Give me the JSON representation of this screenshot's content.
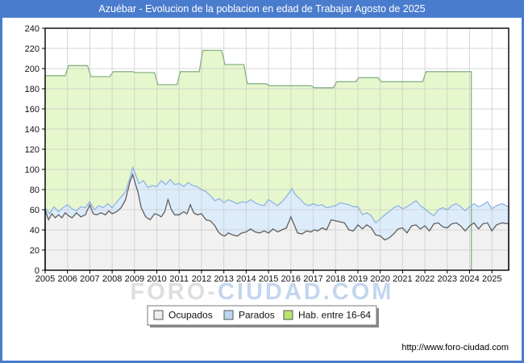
{
  "window": {
    "title": "Azuébar - Evolucion de la poblacion en edad de Trabajar Agosto de 2025"
  },
  "colors": {
    "frame_blue": "#4a7ccd",
    "grid": "#c9c9c9",
    "plot_border": "#000000"
  },
  "watermark": {
    "part1": "FORO-",
    "part2": "CIUDAD.COM"
  },
  "footer": {
    "url": "http://www.foro-ciudad.com"
  },
  "legend": {
    "items": [
      {
        "label": "Ocupados",
        "swatch": "#ededed",
        "border": "#555555"
      },
      {
        "label": "Parados",
        "swatch": "#bdd7f0",
        "border": "#555555"
      },
      {
        "label": "Hab. entre 16-64",
        "swatch": "#b9e56e",
        "border": "#555555"
      }
    ]
  },
  "chart_data": {
    "type": "area",
    "title": "Azuébar - Evolucion de la poblacion en edad de Trabajar Agosto de 2025",
    "xlabel": "",
    "ylabel": "",
    "grid": true,
    "legend_position": "bottom",
    "x_axis": {
      "lim": [
        2005,
        2025.75
      ],
      "ticks": [
        2005,
        2006,
        2007,
        2008,
        2009,
        2010,
        2011,
        2012,
        2013,
        2014,
        2015,
        2016,
        2017,
        2018,
        2019,
        2020,
        2021,
        2022,
        2023,
        2024,
        2025
      ]
    },
    "y_axis": {
      "lim": [
        0,
        240
      ],
      "ticks": [
        0,
        20,
        40,
        60,
        80,
        100,
        120,
        140,
        160,
        180,
        200,
        220,
        240
      ]
    },
    "annual_hab_16_64": {
      "years": [
        2005,
        2006,
        2007,
        2008,
        2009,
        2010,
        2011,
        2012,
        2013,
        2014,
        2015,
        2016,
        2017,
        2018,
        2019,
        2020,
        2021,
        2022,
        2023
      ],
      "values": [
        193,
        203,
        192,
        197,
        196,
        184,
        197,
        218,
        204,
        185,
        183,
        183,
        181,
        187,
        191,
        187,
        187,
        197,
        197
      ]
    },
    "series": [
      {
        "name": "Hab. entre 16-64",
        "fill": "#e6f7cd",
        "line": "#86b386",
        "points": [
          [
            2005,
            193
          ],
          [
            2005.9,
            193
          ],
          [
            2006.05,
            203
          ],
          [
            2006.9,
            203
          ],
          [
            2007.05,
            192
          ],
          [
            2007.9,
            192
          ],
          [
            2008.05,
            197
          ],
          [
            2008.9,
            197
          ],
          [
            2009.05,
            196
          ],
          [
            2009.9,
            196
          ],
          [
            2010.05,
            184
          ],
          [
            2010.9,
            184
          ],
          [
            2011.05,
            197
          ],
          [
            2011.9,
            197
          ],
          [
            2012.05,
            218
          ],
          [
            2012.9,
            218
          ],
          [
            2013.05,
            204
          ],
          [
            2013.9,
            204
          ],
          [
            2014.05,
            185
          ],
          [
            2014.9,
            185
          ],
          [
            2015.05,
            183
          ],
          [
            2015.9,
            183
          ],
          [
            2016.05,
            183
          ],
          [
            2016.9,
            183
          ],
          [
            2017.05,
            181
          ],
          [
            2017.9,
            181
          ],
          [
            2018.05,
            187
          ],
          [
            2018.9,
            187
          ],
          [
            2019.05,
            191
          ],
          [
            2019.9,
            191
          ],
          [
            2020.05,
            187
          ],
          [
            2020.9,
            187
          ],
          [
            2021.05,
            187
          ],
          [
            2021.9,
            187
          ],
          [
            2022.05,
            197
          ],
          [
            2022.9,
            197
          ],
          [
            2023.05,
            197
          ],
          [
            2024.08,
            197
          ]
        ]
      },
      {
        "name": "Parados",
        "fill": "#ddecfa",
        "line": "#8fb4e3",
        "points": [
          [
            2005,
            62
          ],
          [
            2005.2,
            56
          ],
          [
            2005.4,
            63
          ],
          [
            2005.6,
            58
          ],
          [
            2005.8,
            62
          ],
          [
            2006,
            65
          ],
          [
            2006.2,
            61
          ],
          [
            2006.4,
            59
          ],
          [
            2006.6,
            63
          ],
          [
            2006.8,
            62
          ],
          [
            2007,
            68
          ],
          [
            2007.2,
            60
          ],
          [
            2007.4,
            64
          ],
          [
            2007.6,
            62
          ],
          [
            2007.8,
            66
          ],
          [
            2008,
            62
          ],
          [
            2008.3,
            70
          ],
          [
            2008.6,
            78
          ],
          [
            2008.8,
            92
          ],
          [
            2008.92,
            102
          ],
          [
            2009.05,
            95
          ],
          [
            2009.2,
            86
          ],
          [
            2009.4,
            89
          ],
          [
            2009.6,
            82
          ],
          [
            2009.8,
            84
          ],
          [
            2010,
            83
          ],
          [
            2010.2,
            89
          ],
          [
            2010.4,
            85
          ],
          [
            2010.6,
            90
          ],
          [
            2010.8,
            85
          ],
          [
            2011,
            86
          ],
          [
            2011.2,
            83
          ],
          [
            2011.4,
            87
          ],
          [
            2011.6,
            84
          ],
          [
            2011.8,
            83
          ],
          [
            2012,
            80
          ],
          [
            2012.2,
            78
          ],
          [
            2012.4,
            74
          ],
          [
            2012.6,
            69
          ],
          [
            2012.8,
            71
          ],
          [
            2013,
            67
          ],
          [
            2013.2,
            70
          ],
          [
            2013.4,
            68
          ],
          [
            2013.6,
            66
          ],
          [
            2013.8,
            68
          ],
          [
            2014,
            67
          ],
          [
            2014.2,
            70
          ],
          [
            2014.4,
            67
          ],
          [
            2014.6,
            65
          ],
          [
            2014.8,
            64
          ],
          [
            2015,
            70
          ],
          [
            2015.2,
            67
          ],
          [
            2015.4,
            64
          ],
          [
            2015.6,
            68
          ],
          [
            2015.8,
            73
          ],
          [
            2016.05,
            81
          ],
          [
            2016.2,
            75
          ],
          [
            2016.4,
            71
          ],
          [
            2016.6,
            66
          ],
          [
            2016.8,
            64
          ],
          [
            2017,
            66
          ],
          [
            2017.2,
            64
          ],
          [
            2017.4,
            65
          ],
          [
            2017.6,
            62
          ],
          [
            2017.8,
            63
          ],
          [
            2018,
            64
          ],
          [
            2018.2,
            67
          ],
          [
            2018.4,
            66
          ],
          [
            2018.6,
            65
          ],
          [
            2018.8,
            63
          ],
          [
            2019,
            63
          ],
          [
            2019.2,
            55
          ],
          [
            2019.4,
            57
          ],
          [
            2019.6,
            54
          ],
          [
            2019.8,
            47
          ],
          [
            2020,
            51
          ],
          [
            2020.2,
            55
          ],
          [
            2020.4,
            58
          ],
          [
            2020.6,
            62
          ],
          [
            2020.8,
            64
          ],
          [
            2021,
            61
          ],
          [
            2021.2,
            63
          ],
          [
            2021.4,
            66
          ],
          [
            2021.6,
            69
          ],
          [
            2021.8,
            64
          ],
          [
            2022,
            61
          ],
          [
            2022.2,
            57
          ],
          [
            2022.4,
            54
          ],
          [
            2022.6,
            60
          ],
          [
            2022.8,
            62
          ],
          [
            2023,
            60
          ],
          [
            2023.2,
            64
          ],
          [
            2023.4,
            66
          ],
          [
            2023.6,
            63
          ],
          [
            2023.8,
            59
          ],
          [
            2024,
            63
          ],
          [
            2024.2,
            66
          ],
          [
            2024.4,
            63
          ],
          [
            2024.6,
            65
          ],
          [
            2024.8,
            68
          ],
          [
            2025,
            61
          ],
          [
            2025.2,
            64
          ],
          [
            2025.45,
            66
          ],
          [
            2025.75,
            63
          ]
        ]
      },
      {
        "name": "Ocupados",
        "fill": "#f1f1f1",
        "line": "#5f5f5f",
        "points": [
          [
            2005,
            60
          ],
          [
            2005.15,
            50
          ],
          [
            2005.3,
            56
          ],
          [
            2005.45,
            52
          ],
          [
            2005.6,
            55
          ],
          [
            2005.75,
            52
          ],
          [
            2005.9,
            57
          ],
          [
            2006.05,
            54
          ],
          [
            2006.2,
            52
          ],
          [
            2006.4,
            57
          ],
          [
            2006.6,
            53
          ],
          [
            2006.8,
            55
          ],
          [
            2007,
            65
          ],
          [
            2007.15,
            56
          ],
          [
            2007.3,
            55
          ],
          [
            2007.5,
            57
          ],
          [
            2007.7,
            55
          ],
          [
            2007.85,
            59
          ],
          [
            2008,
            56
          ],
          [
            2008.2,
            58
          ],
          [
            2008.4,
            62
          ],
          [
            2008.6,
            70
          ],
          [
            2008.8,
            88
          ],
          [
            2008.92,
            95
          ],
          [
            2009.05,
            85
          ],
          [
            2009.15,
            78
          ],
          [
            2009.3,
            62
          ],
          [
            2009.5,
            53
          ],
          [
            2009.7,
            50
          ],
          [
            2009.9,
            56
          ],
          [
            2010.05,
            55
          ],
          [
            2010.2,
            53
          ],
          [
            2010.35,
            58
          ],
          [
            2010.5,
            70
          ],
          [
            2010.65,
            60
          ],
          [
            2010.8,
            55
          ],
          [
            2011,
            55
          ],
          [
            2011.2,
            58
          ],
          [
            2011.35,
            56
          ],
          [
            2011.5,
            65
          ],
          [
            2011.65,
            57
          ],
          [
            2011.8,
            55
          ],
          [
            2012,
            56
          ],
          [
            2012.2,
            50
          ],
          [
            2012.4,
            49
          ],
          [
            2012.6,
            44
          ],
          [
            2012.75,
            38
          ],
          [
            2012.9,
            35
          ],
          [
            2013.05,
            34
          ],
          [
            2013.2,
            37
          ],
          [
            2013.4,
            35
          ],
          [
            2013.6,
            34
          ],
          [
            2013.8,
            37
          ],
          [
            2014,
            38
          ],
          [
            2014.2,
            41
          ],
          [
            2014.4,
            38
          ],
          [
            2014.6,
            37
          ],
          [
            2014.8,
            39
          ],
          [
            2015,
            37
          ],
          [
            2015.2,
            41
          ],
          [
            2015.4,
            38
          ],
          [
            2015.6,
            40
          ],
          [
            2015.8,
            42
          ],
          [
            2016,
            53
          ],
          [
            2016.15,
            45
          ],
          [
            2016.3,
            37
          ],
          [
            2016.5,
            36
          ],
          [
            2016.7,
            39
          ],
          [
            2016.9,
            38
          ],
          [
            2017.05,
            40
          ],
          [
            2017.2,
            39
          ],
          [
            2017.4,
            42
          ],
          [
            2017.6,
            40
          ],
          [
            2017.8,
            50
          ],
          [
            2018,
            49
          ],
          [
            2018.2,
            48
          ],
          [
            2018.4,
            47
          ],
          [
            2018.6,
            40
          ],
          [
            2018.8,
            39
          ],
          [
            2019,
            45
          ],
          [
            2019.2,
            41
          ],
          [
            2019.4,
            45
          ],
          [
            2019.6,
            42
          ],
          [
            2019.8,
            35
          ],
          [
            2020,
            34
          ],
          [
            2020.2,
            30
          ],
          [
            2020.4,
            32
          ],
          [
            2020.6,
            36
          ],
          [
            2020.8,
            41
          ],
          [
            2021,
            42
          ],
          [
            2021.2,
            37
          ],
          [
            2021.4,
            44
          ],
          [
            2021.6,
            45
          ],
          [
            2021.8,
            41
          ],
          [
            2022,
            44
          ],
          [
            2022.2,
            39
          ],
          [
            2022.4,
            46
          ],
          [
            2022.6,
            47
          ],
          [
            2022.8,
            43
          ],
          [
            2023,
            42
          ],
          [
            2023.2,
            46
          ],
          [
            2023.4,
            47
          ],
          [
            2023.6,
            44
          ],
          [
            2023.8,
            39
          ],
          [
            2024,
            44
          ],
          [
            2024.2,
            47
          ],
          [
            2024.4,
            41
          ],
          [
            2024.6,
            46
          ],
          [
            2024.8,
            47
          ],
          [
            2025,
            39
          ],
          [
            2025.2,
            45
          ],
          [
            2025.45,
            47
          ],
          [
            2025.75,
            46
          ]
        ]
      }
    ]
  }
}
